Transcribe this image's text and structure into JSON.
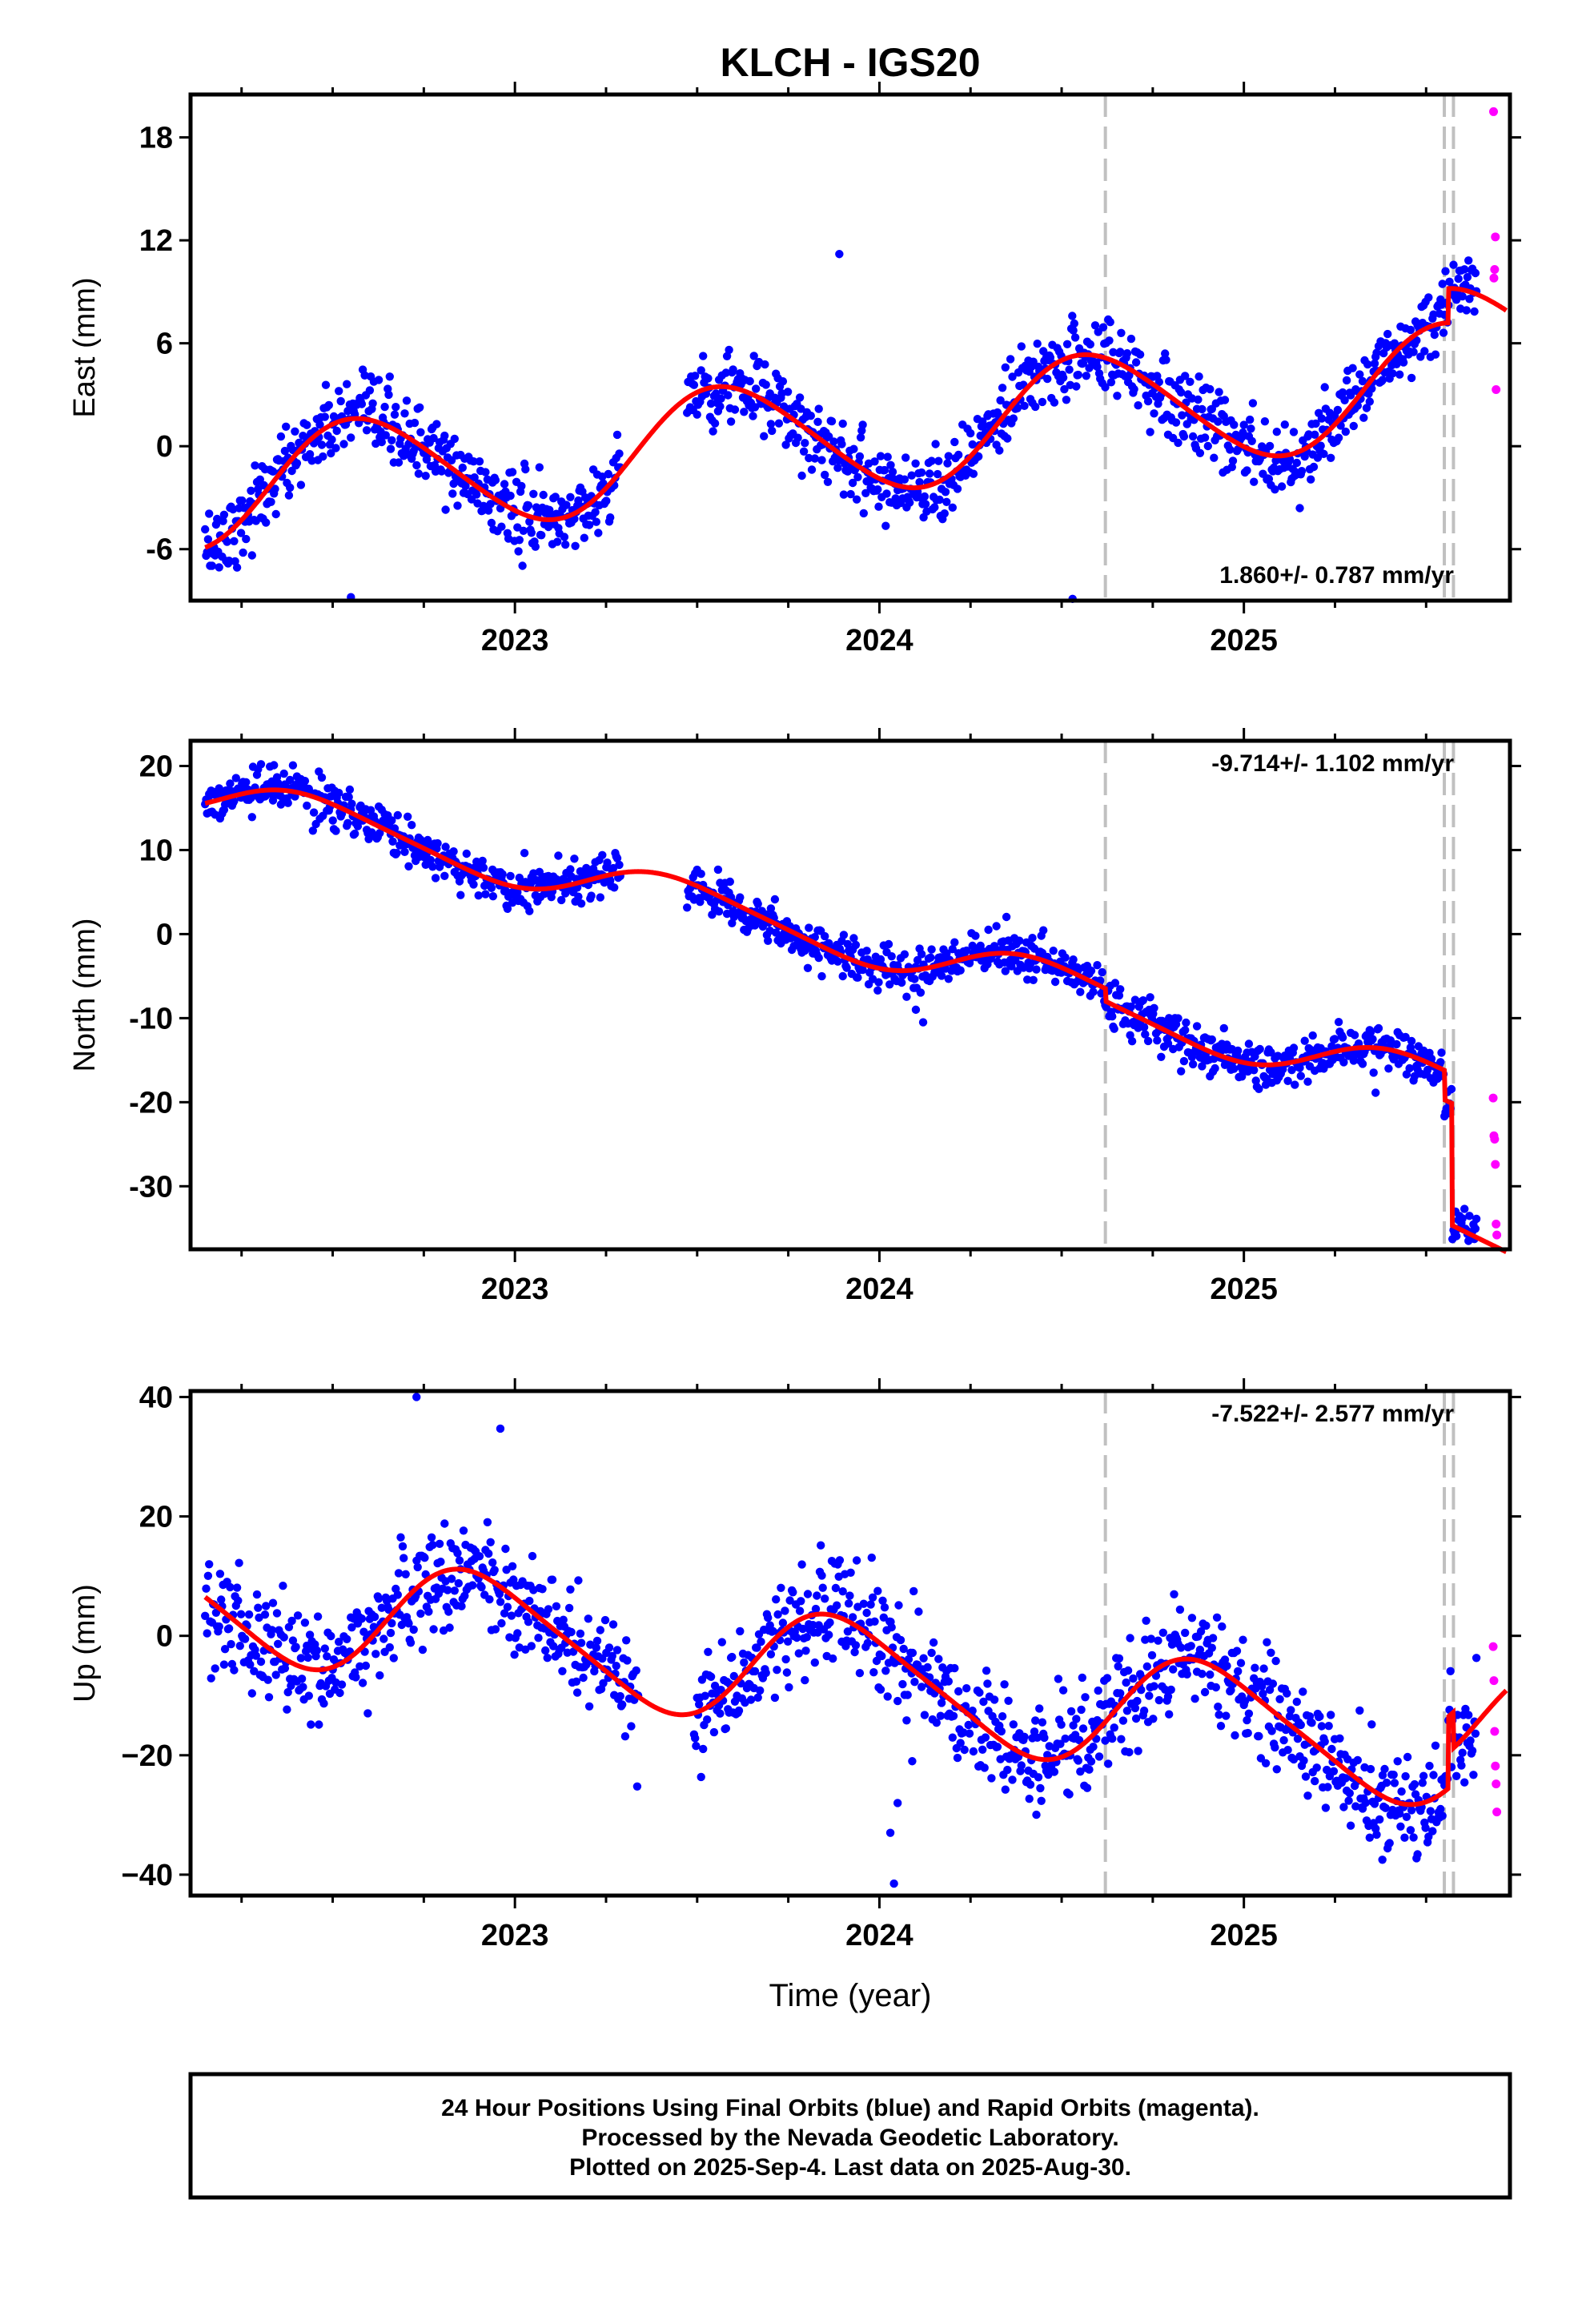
{
  "figure_title": "KLCH - IGS20",
  "x_axis_title": "Time (year)",
  "footer": {
    "line1": "24 Hour Positions Using Final Orbits (blue) and Rapid Orbits (magenta).",
    "line2": "Processed by the Nevada Geodetic Laboratory.",
    "line3": "Plotted on 2025-Sep-4. Last data on 2025-Aug-30."
  },
  "colors": {
    "final": "#0000ff",
    "rapid": "#ff00ff",
    "model": "#ff0000",
    "steps": "#c0c0c0",
    "frame": "#000000"
  },
  "chart_data": [
    {
      "type": "scatter",
      "component": "East",
      "ylabel": "East (mm)",
      "rate_label": "1.860+/- 0.787 mm/yr",
      "rate_position": "bottom-right",
      "xlim": [
        2022.11,
        2025.73
      ],
      "ylim": [
        -9,
        20.5
      ],
      "yticks": [
        -6,
        0,
        6,
        12,
        18
      ],
      "yticklabels": [
        "-6",
        "0",
        "6",
        "12",
        "18"
      ],
      "xticks": [
        2023,
        2024,
        2025
      ],
      "xticklabels": [
        "2023",
        "2024",
        "2025"
      ],
      "minor_xticks": [
        2022.25,
        2022.5,
        2022.75,
        2023.25,
        2023.5,
        2023.75,
        2024.25,
        2024.5,
        2024.75,
        2025.25,
        2025.5
      ],
      "step_epochs": [
        2024.62,
        2025.55,
        2025.575
      ],
      "model": {
        "baseline": -2.6,
        "t0": 2022.15,
        "rate": 1.86,
        "annual_amp": 3.4,
        "annual_phase_day": 0.33,
        "semiannual_amp": 0.3,
        "steps": [
          {
            "epoch": 2025.56,
            "size": 2.0
          }
        ]
      },
      "scatter_noise_mm": 1.1,
      "gaps": [
        [
          2023.29,
          2023.47
        ]
      ],
      "outliers": [
        {
          "x": 2023.89,
          "y": 11.2
        },
        {
          "x": 2024.53,
          "y": -8.9
        },
        {
          "x": 2022.55,
          "y": -8.8
        }
      ],
      "final_end": 2025.64,
      "rapid": [
        {
          "x": 2025.685,
          "y": 19.5
        },
        {
          "x": 2025.69,
          "y": 12.2
        },
        {
          "x": 2025.688,
          "y": 10.3
        },
        {
          "x": 2025.686,
          "y": 9.8
        },
        {
          "x": 2025.692,
          "y": 3.3
        }
      ]
    },
    {
      "type": "scatter",
      "component": "North",
      "ylabel": "North (mm)",
      "rate_label": "-9.714+/- 1.102 mm/yr",
      "rate_position": "top-right",
      "xlim": [
        2022.11,
        2025.73
      ],
      "ylim": [
        -37.5,
        23
      ],
      "yticks": [
        -30,
        -20,
        -10,
        0,
        10,
        20
      ],
      "yticklabels": [
        "-30",
        "-20",
        "-10",
        "0",
        "10",
        "20"
      ],
      "xticks": [
        2023,
        2024,
        2025
      ],
      "xticklabels": [
        "2023",
        "2024",
        "2025"
      ],
      "minor_xticks": [
        2022.25,
        2022.5,
        2022.75,
        2023.25,
        2023.5,
        2023.75,
        2024.25,
        2024.5,
        2024.75,
        2025.25,
        2025.5
      ],
      "step_epochs": [
        2024.62,
        2025.55,
        2025.575
      ],
      "model": {
        "baseline": 16.6,
        "t0": 2022.15,
        "rate": -9.714,
        "annual_amp": 2.6,
        "annual_phase_day": 0.2,
        "semiannual_amp": 0.4,
        "steps": [
          {
            "epoch": 2024.62,
            "size": -1.5
          },
          {
            "epoch": 2025.55,
            "size": -3.5
          },
          {
            "epoch": 2025.57,
            "size": -14.5
          }
        ]
      },
      "scatter_noise_mm": 1.3,
      "gaps": [
        [
          2023.29,
          2023.47
        ]
      ],
      "outliers": [
        {
          "x": 2024.12,
          "y": -10.5
        },
        {
          "x": 2024.1,
          "y": -9.0
        },
        {
          "x": 2022.94,
          "y": 4.5
        }
      ],
      "final_end": 2025.64,
      "rapid": [
        {
          "x": 2025.684,
          "y": -19.5
        },
        {
          "x": 2025.686,
          "y": -24.0
        },
        {
          "x": 2025.688,
          "y": -24.4
        },
        {
          "x": 2025.69,
          "y": -27.4
        },
        {
          "x": 2025.692,
          "y": -34.5
        },
        {
          "x": 2025.694,
          "y": -35.8
        }
      ]
    },
    {
      "type": "scatter",
      "component": "Up",
      "ylabel": "Up (mm)",
      "rate_label": "-7.522+/- 2.577 mm/yr",
      "rate_position": "top-right",
      "xlim": [
        2022.11,
        2025.73
      ],
      "ylim": [
        -43.5,
        41
      ],
      "yticks": [
        -40,
        -20,
        0,
        20,
        40
      ],
      "yticklabels": [
        "−40",
        "−20",
        "0",
        "20",
        "40"
      ],
      "xticks": [
        2023,
        2024,
        2025
      ],
      "xticklabels": [
        "2023",
        "2024",
        "2025"
      ],
      "minor_xticks": [
        2022.25,
        2022.5,
        2022.75,
        2023.25,
        2023.5,
        2023.75,
        2024.25,
        2024.5,
        2024.75,
        2025.25,
        2025.5
      ],
      "step_epochs": [
        2024.62,
        2025.55,
        2025.575
      ],
      "model": {
        "baseline": 6.5,
        "t0": 2022.15,
        "rate": -7.522,
        "annual_amp": 9.5,
        "annual_phase_day": 0.65,
        "semiannual_amp": 1.5,
        "steps": [
          {
            "epoch": 2025.56,
            "size": 12.0
          },
          {
            "epoch": 2025.575,
            "size": -6.0
          }
        ]
      },
      "scatter_noise_mm": 4.5,
      "gaps": [
        [
          2023.34,
          2023.49
        ]
      ],
      "outliers": [
        {
          "x": 2022.73,
          "y": 40.0
        },
        {
          "x": 2022.96,
          "y": 34.7
        },
        {
          "x": 2024.04,
          "y": -41.5
        },
        {
          "x": 2024.03,
          "y": -33.0
        },
        {
          "x": 2024.05,
          "y": -28.0
        },
        {
          "x": 2024.09,
          "y": -21.0
        },
        {
          "x": 2025.38,
          "y": -37.5
        }
      ],
      "final_end": 2025.64,
      "rapid": [
        {
          "x": 2025.684,
          "y": -1.8
        },
        {
          "x": 2025.686,
          "y": -7.5
        },
        {
          "x": 2025.688,
          "y": -16.0
        },
        {
          "x": 2025.69,
          "y": -21.8
        },
        {
          "x": 2025.692,
          "y": -24.8
        },
        {
          "x": 2025.694,
          "y": -29.5
        }
      ]
    }
  ]
}
